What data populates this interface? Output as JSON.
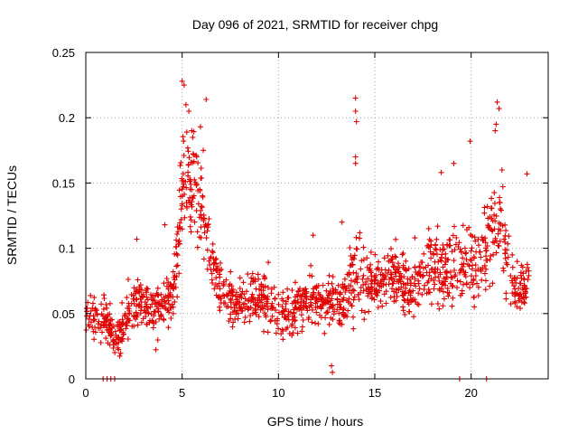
{
  "chart_data": {
    "type": "scatter",
    "title": "Day 096 of 2021, SRMTID for receiver chpg",
    "xlabel": "GPS time / hours",
    "ylabel": "SRMTID / TECUs",
    "xlim": [
      0,
      24
    ],
    "ylim": [
      0,
      0.25
    ],
    "xticks": [
      0,
      5,
      10,
      15,
      20
    ],
    "xtick_labels": [
      "0",
      "5",
      "10",
      "15",
      "20"
    ],
    "yticks": [
      0,
      0.05,
      0.1,
      0.15,
      0.2,
      0.25
    ],
    "ytick_labels": [
      "0",
      "0.05",
      "0.1",
      "0.15",
      "0.2",
      "0.25"
    ],
    "grid": true,
    "marker": "plus",
    "color": "#e00000",
    "series": [
      {
        "name": "SRMTID",
        "anchors_x": [
          0,
          0.5,
          1.0,
          1.5,
          1.8,
          2.2,
          2.6,
          3.0,
          3.5,
          4.0,
          4.5,
          4.8,
          5.0,
          5.3,
          5.7,
          6.0,
          6.5,
          7.0,
          7.5,
          8.0,
          8.5,
          9.0,
          9.5,
          10.0,
          10.5,
          11.0,
          11.5,
          12.0,
          12.5,
          13.0,
          13.5,
          14.0,
          14.5,
          15.0,
          15.5,
          16.0,
          16.5,
          17.0,
          17.5,
          18.0,
          18.5,
          19.0,
          19.5,
          20.0,
          20.5,
          21.0,
          21.5,
          22.0,
          22.5,
          23.0
        ],
        "anchors_y": [
          0.05,
          0.05,
          0.045,
          0.03,
          0.035,
          0.05,
          0.06,
          0.055,
          0.05,
          0.06,
          0.065,
          0.1,
          0.15,
          0.16,
          0.15,
          0.13,
          0.09,
          0.07,
          0.06,
          0.055,
          0.06,
          0.065,
          0.06,
          0.055,
          0.05,
          0.055,
          0.06,
          0.06,
          0.06,
          0.06,
          0.065,
          0.08,
          0.075,
          0.07,
          0.075,
          0.08,
          0.075,
          0.07,
          0.08,
          0.09,
          0.08,
          0.085,
          0.085,
          0.09,
          0.09,
          0.11,
          0.12,
          0.08,
          0.065,
          0.08
        ],
        "spread": [
          0.012,
          0.015,
          0.015,
          0.012,
          0.012,
          0.015,
          0.016,
          0.016,
          0.016,
          0.016,
          0.018,
          0.025,
          0.035,
          0.035,
          0.035,
          0.03,
          0.02,
          0.016,
          0.014,
          0.014,
          0.016,
          0.016,
          0.016,
          0.014,
          0.014,
          0.015,
          0.016,
          0.016,
          0.016,
          0.016,
          0.018,
          0.024,
          0.02,
          0.018,
          0.018,
          0.018,
          0.018,
          0.018,
          0.02,
          0.024,
          0.022,
          0.022,
          0.022,
          0.024,
          0.024,
          0.028,
          0.03,
          0.022,
          0.016,
          0.02
        ],
        "n_points": 1500,
        "seed": 96,
        "peaks": [
          {
            "x": 5.0,
            "y": 0.228
          },
          {
            "x": 5.1,
            "y": 0.225
          },
          {
            "x": 5.2,
            "y": 0.21
          },
          {
            "x": 5.35,
            "y": 0.205
          },
          {
            "x": 5.5,
            "y": 0.19
          },
          {
            "x": 5.55,
            "y": 0.185
          },
          {
            "x": 5.95,
            "y": 0.193
          },
          {
            "x": 6.1,
            "y": 0.175
          },
          {
            "x": 6.25,
            "y": 0.214
          },
          {
            "x": 14.0,
            "y": 0.215
          },
          {
            "x": 14.0,
            "y": 0.205
          },
          {
            "x": 14.05,
            "y": 0.197
          },
          {
            "x": 14.0,
            "y": 0.17
          },
          {
            "x": 14.0,
            "y": 0.165
          },
          {
            "x": 19.95,
            "y": 0.182
          },
          {
            "x": 21.35,
            "y": 0.212
          },
          {
            "x": 21.45,
            "y": 0.207
          },
          {
            "x": 21.3,
            "y": 0.195
          },
          {
            "x": 21.25,
            "y": 0.19
          },
          {
            "x": 18.45,
            "y": 0.158
          },
          {
            "x": 19.1,
            "y": 0.165
          },
          {
            "x": 21.6,
            "y": 0.16
          },
          {
            "x": 22.9,
            "y": 0.157
          },
          {
            "x": 4.1,
            "y": 0.118
          },
          {
            "x": 2.65,
            "y": 0.107
          },
          {
            "x": 11.8,
            "y": 0.11
          },
          {
            "x": 13.3,
            "y": 0.12
          },
          {
            "x": 17.8,
            "y": 0.115
          }
        ],
        "zeros": [
          {
            "x": 0.9,
            "y": 0.0
          },
          {
            "x": 1.1,
            "y": 0.0
          },
          {
            "x": 1.3,
            "y": 0.0
          },
          {
            "x": 1.5,
            "y": 0.0
          },
          {
            "x": 19.4,
            "y": 0.0
          },
          {
            "x": 20.8,
            "y": 0.0
          },
          {
            "x": 12.8,
            "y": 0.005
          },
          {
            "x": 12.75,
            "y": 0.01
          }
        ]
      }
    ]
  }
}
